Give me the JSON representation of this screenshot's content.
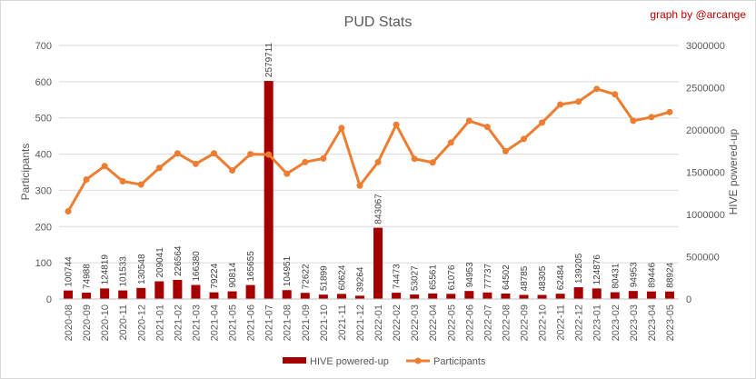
{
  "chart_data": {
    "type": "bar+line",
    "title": "PUD Stats",
    "credit": "graph by @arcange",
    "categories": [
      "2020-08",
      "2020-09",
      "2020-10",
      "2020-11",
      "2020-12",
      "2021-01",
      "2021-02",
      "2021-03",
      "2021-04",
      "2021-05",
      "2021-06",
      "2021-07",
      "2021-08",
      "2021-09",
      "2021-10",
      "2021-11",
      "2021-12",
      "2022-01",
      "2022-02",
      "2022-03",
      "2022-04",
      "2022-05",
      "2022-06",
      "2022-07",
      "2022-08",
      "2022-09",
      "2022-10",
      "2022-11",
      "2022-12",
      "2023-01",
      "2023-02",
      "2023-03",
      "2023-04",
      "2023-05"
    ],
    "series": [
      {
        "name": "HIVE powered-up",
        "type": "bar",
        "axis": "right",
        "color": "#a50000",
        "values": [
          100744,
          74988,
          124819,
          101533,
          130548,
          209041,
          226564,
          166380,
          79224,
          90814,
          165655,
          2579711,
          104951,
          72622,
          51899,
          60624,
          39264,
          843067,
          74473,
          53027,
          65561,
          61076,
          94953,
          77737,
          64502,
          48785,
          48305,
          62484,
          139205,
          124876,
          80431,
          94953,
          89446,
          88924
        ],
        "labels": [
          "100744",
          "74988",
          "124819",
          "101533",
          "130548",
          "209041",
          "226564",
          "166380",
          "79224",
          "90814",
          "165655",
          "2579711",
          "104951",
          "72622",
          "51899",
          "60624",
          "39264",
          "843067",
          "74473",
          "53027",
          "65561",
          "61076",
          "94953",
          "77737",
          "64502",
          "48785",
          "48305",
          "62484",
          "139205",
          "124876",
          "80431",
          "94953",
          "89446",
          "88924"
        ]
      },
      {
        "name": "Participants",
        "type": "line",
        "axis": "left",
        "color": "#ed7d31",
        "values": [
          242,
          330,
          367,
          325,
          316,
          362,
          402,
          373,
          402,
          355,
          400,
          399,
          346,
          378,
          388,
          472,
          313,
          378,
          481,
          387,
          377,
          432,
          492,
          475,
          408,
          442,
          487,
          537,
          545,
          580,
          565,
          492,
          502,
          516
        ]
      }
    ],
    "ylabel": "Participants",
    "y2label": "HIVE powered-up",
    "ylim": [
      0,
      700
    ],
    "yticks": [
      "0",
      "100",
      "200",
      "300",
      "400",
      "500",
      "600",
      "700"
    ],
    "y2lim": [
      0,
      3000000
    ],
    "y2ticks": [
      "0",
      "500000",
      "1000000",
      "1500000",
      "2000000",
      "2500000",
      "3000000"
    ],
    "grid": true,
    "legend": "bottom"
  }
}
